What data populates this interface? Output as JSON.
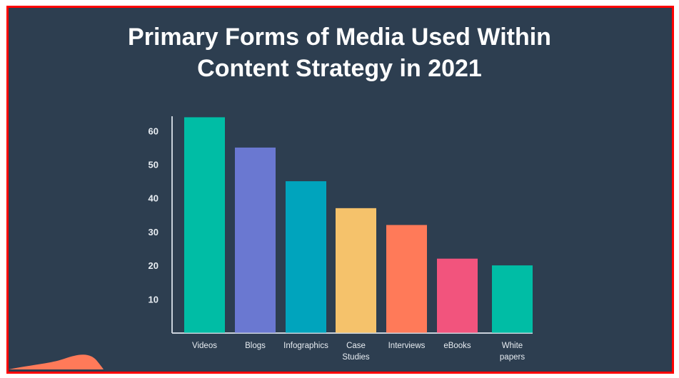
{
  "chart_data": {
    "type": "bar",
    "title": [
      "Primary Forms of Media Used Within",
      "Content Strategy in 2021"
    ],
    "categories": [
      [
        "Videos"
      ],
      [
        "Blogs"
      ],
      [
        "Infographics"
      ],
      [
        "Case",
        "Studies"
      ],
      [
        "Interviews"
      ],
      [
        "eBooks"
      ],
      [
        "White",
        "papers"
      ]
    ],
    "values": [
      64,
      55,
      45,
      37,
      32,
      22,
      20
    ],
    "colors": [
      "#00bda5",
      "#6a78d1",
      "#00a4bd",
      "#f5c26b",
      "#ff7a59",
      "#f2547d",
      "#00bda5"
    ],
    "yticks": [
      "10",
      "20",
      "30",
      "40",
      "50",
      "60"
    ],
    "ylim": [
      0,
      64
    ],
    "grid": false,
    "background": "#2d3e50",
    "decoration_color": "#ff7a59"
  }
}
